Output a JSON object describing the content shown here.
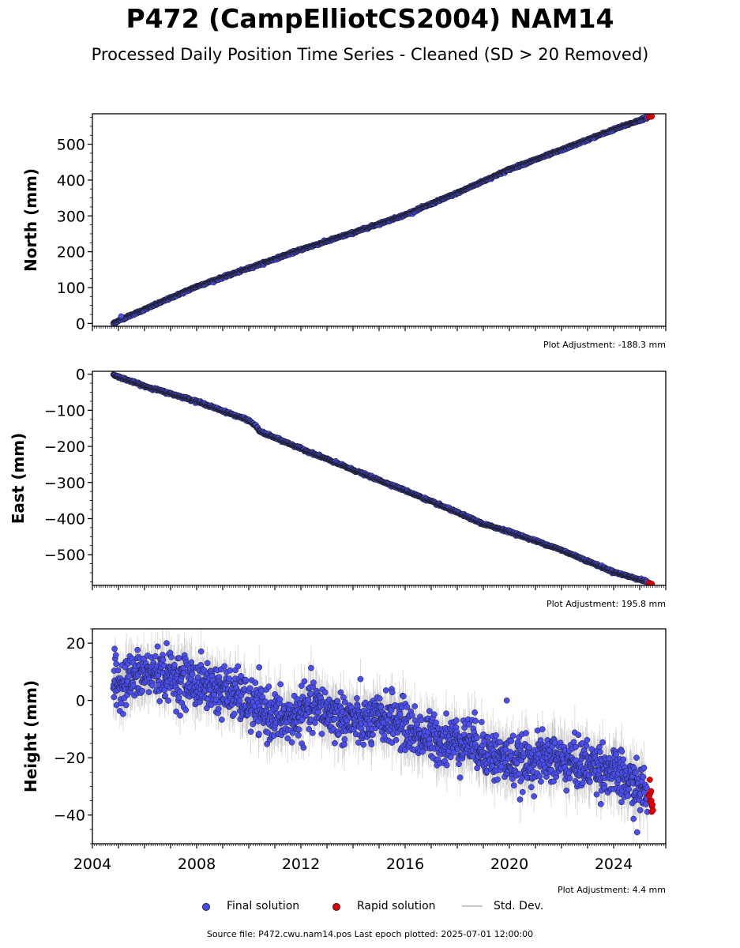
{
  "header": {
    "title": "P472 (CampElliotCS2004) NAM14",
    "subtitle": "Processed Daily Position Time Series - Cleaned (SD > 20 Removed)"
  },
  "legend": {
    "final_label": "Final solution",
    "rapid_label": "Rapid solution",
    "std_label": "Std. Dev."
  },
  "footer": {
    "text": "Source file: P472.cwu.nam14.pos  Last epoch plotted: 2025-07-01 12:00:00"
  },
  "colors": {
    "final": "#4a4ef0",
    "rapid": "#e00000",
    "std": "#b4b4b4",
    "outline": "#1a1a1a"
  },
  "chart_data": [
    {
      "type": "scatter",
      "ylabel": "North (mm)",
      "adjustment": "Plot Adjustment: -188.3 mm",
      "xlim": [
        2004.0,
        2026.0
      ],
      "ylim": [
        -8,
        585
      ],
      "yticks": [
        0,
        100,
        200,
        300,
        400,
        500
      ],
      "ytick_labels": [
        "0",
        "100",
        "200",
        "300",
        "400",
        "500"
      ],
      "series": [
        {
          "name": "Final solution",
          "x": [
            2004.8,
            2005.0,
            2006.0,
            2008.0,
            2010.0,
            2012.0,
            2014.0,
            2016.0,
            2018.0,
            2020.0,
            2022.0,
            2024.0,
            2025.3
          ],
          "y": [
            0,
            8,
            39,
            103,
            154,
            206,
            253,
            303,
            364,
            430,
            484,
            541,
            575
          ]
        },
        {
          "name": "Rapid solution",
          "x": [
            2025.35,
            2025.45
          ],
          "y": [
            575,
            578
          ]
        }
      ],
      "annotations": [
        {
          "x": 2005.1,
          "y": 20
        }
      ]
    },
    {
      "type": "scatter",
      "ylabel": "East (mm)",
      "adjustment": "Plot Adjustment: 195.8 mm",
      "xlim": [
        2004.0,
        2026.0
      ],
      "ylim": [
        -585,
        8
      ],
      "yticks": [
        0,
        -100,
        -200,
        -300,
        -400,
        -500
      ],
      "ytick_labels": [
        "0",
        "−100",
        "−200",
        "−300",
        "−400",
        "−500"
      ],
      "series": [
        {
          "name": "Final solution",
          "x": [
            2004.8,
            2006.0,
            2008.0,
            2010.0,
            2010.3,
            2010.4,
            2012.0,
            2014.0,
            2016.0,
            2018.0,
            2019.0,
            2020.0,
            2022.0,
            2024.0,
            2025.3
          ],
          "y": [
            -2,
            -33,
            -75,
            -128,
            -145,
            -158,
            -206,
            -265,
            -322,
            -383,
            -415,
            -436,
            -487,
            -548,
            -575
          ]
        },
        {
          "name": "Rapid solution",
          "x": [
            2025.35,
            2025.45
          ],
          "y": [
            -577,
            -580
          ]
        }
      ]
    },
    {
      "type": "scatter",
      "ylabel": "Height (mm)",
      "adjustment": "Plot Adjustment: 4.4 mm",
      "xlim": [
        2004.0,
        2026.0
      ],
      "ylim": [
        -50,
        25
      ],
      "yticks": [
        20,
        0,
        -20,
        -40
      ],
      "ytick_labels": [
        "20",
        "0",
        "−20",
        "−40"
      ],
      "xticks": [
        2004,
        2008,
        2012,
        2016,
        2020,
        2024
      ],
      "xtick_labels": [
        "2004",
        "2008",
        "2012",
        "2016",
        "2020",
        "2024"
      ],
      "series": [
        {
          "name": "Final solution",
          "x": [
            2004.8,
            2005.5,
            2006.5,
            2007.5,
            2008.5,
            2009.5,
            2010.5,
            2011.5,
            2012.5,
            2013.5,
            2014.5,
            2015.5,
            2016.5,
            2017.5,
            2018.5,
            2019.5,
            2020.5,
            2021.5,
            2022.5,
            2023.5,
            2024.5,
            2025.3
          ],
          "y": [
            5,
            8,
            10,
            7,
            5,
            2,
            -4,
            -7,
            -2,
            -6,
            -8,
            -6,
            -12,
            -14,
            -14,
            -20,
            -22,
            -20,
            -22,
            -23,
            -28,
            -32
          ]
        },
        {
          "name": "Rapid solution",
          "x": [
            2025.35,
            2025.4,
            2025.45
          ],
          "y": [
            -32,
            -35,
            -38
          ]
        }
      ],
      "annotations": [
        {
          "x": 2019.9,
          "y": 0
        },
        {
          "x": 2004.85,
          "y": 18
        },
        {
          "x": 2024.9,
          "y": -46
        }
      ]
    }
  ]
}
